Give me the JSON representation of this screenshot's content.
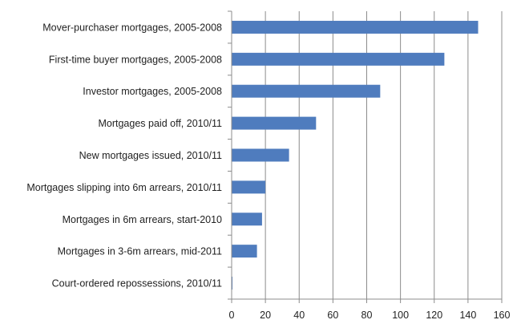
{
  "chart_data": {
    "type": "bar",
    "orientation": "horizontal",
    "categories": [
      "Mover-purchaser mortgages, 2005-2008",
      "First-time buyer mortgages, 2005-2008",
      "Investor mortgages, 2005-2008",
      "Mortgages paid off, 2010/11",
      "New mortgages issued, 2010/11",
      "Mortgages slipping into 6m arrears, 2010/11",
      "Mortgages in 6m arrears, start-2010",
      "Mortgages in 3-6m arrears, mid-2011",
      "Court-ordered repossessions, 2010/11"
    ],
    "values": [
      146,
      126,
      88,
      50,
      34,
      20,
      18,
      15,
      0.5
    ],
    "xlim": [
      0,
      160
    ],
    "xticks": [
      "0",
      "20",
      "40",
      "60",
      "80",
      "100",
      "120",
      "140",
      "160"
    ],
    "grid": "vertical",
    "legend": "none",
    "bar_color": "#4f7cbe",
    "grid_color": "#8c8c8c",
    "axis_color": "#8c8c8c"
  }
}
